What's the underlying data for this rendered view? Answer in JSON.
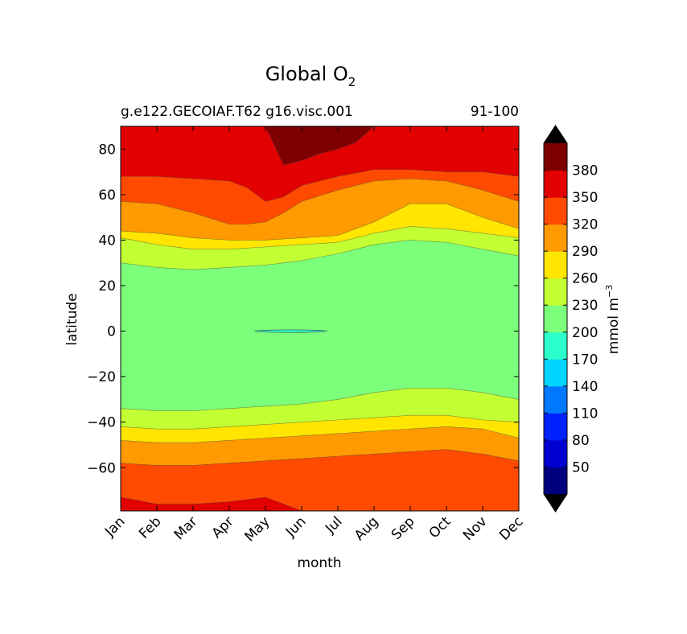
{
  "chart_data": {
    "type": "heatmap",
    "title": "Global O",
    "title_subscript": "2",
    "subtitle_left": "g.e122.GECOIAF.T62 g16.visc.001",
    "subtitle_right": "91-100",
    "xlabel": "month",
    "ylabel": "latitude",
    "x_ticks": [
      "Jan",
      "Feb",
      "Mar",
      "Apr",
      "May",
      "Jun",
      "Jul",
      "Aug",
      "Sep",
      "Oct",
      "Nov",
      "Dec"
    ],
    "y_ticks": [
      80,
      60,
      40,
      20,
      0,
      -20,
      -40,
      -60
    ],
    "ylim": [
      -79,
      90
    ],
    "colorbar": {
      "label": "mmol m",
      "label_superscript": "−3",
      "levels": [
        20,
        50,
        80,
        110,
        140,
        170,
        200,
        230,
        260,
        290,
        320,
        350,
        380,
        410
      ],
      "tick_labels": [
        "50",
        "80",
        "110",
        "140",
        "170",
        "200",
        "230",
        "260",
        "290",
        "320",
        "350",
        "380"
      ],
      "colors": [
        "#00007f",
        "#0000d0",
        "#0022ff",
        "#0078ff",
        "#00d4ff",
        "#2bffcc",
        "#7cff7a",
        "#c2ff33",
        "#ffe500",
        "#ff9a00",
        "#ff4a00",
        "#e20000",
        "#7f0000"
      ],
      "extend": "both",
      "under_color": "#000000",
      "over_color": "#000000"
    },
    "contour_boundaries": [
      {
        "value": 380,
        "side": "north",
        "months": [
          5.0,
          5.5,
          6.0,
          6.5,
          7.0,
          7.5,
          8.0
        ],
        "lat": [
          90,
          73,
          75,
          78,
          80,
          83,
          90
        ]
      },
      {
        "value": 350,
        "side": "north",
        "months": [
          1,
          2,
          3,
          4,
          4.5,
          5,
          5.5,
          6,
          7,
          8,
          9,
          10,
          11,
          12
        ],
        "lat": [
          68,
          68,
          67,
          66,
          63,
          57,
          59,
          64,
          68,
          71,
          71,
          70,
          70,
          68
        ]
      },
      {
        "value": 320,
        "side": "north",
        "months": [
          1,
          2,
          3,
          4,
          4.5,
          5,
          5.5,
          6,
          7,
          8,
          9,
          10,
          11,
          12
        ],
        "lat": [
          57,
          56,
          52,
          47,
          47,
          48,
          52,
          57,
          62,
          66,
          67,
          66,
          62,
          57
        ]
      },
      {
        "value": 290,
        "side": "north",
        "months": [
          1,
          2,
          3,
          4,
          5,
          6,
          7,
          8,
          9,
          10,
          11,
          12
        ],
        "lat": [
          44,
          43,
          41,
          40,
          40,
          41,
          42,
          48,
          56,
          56,
          50,
          45
        ]
      },
      {
        "value": 260,
        "side": "north",
        "months": [
          1,
          2,
          3,
          4,
          5,
          6,
          7,
          8,
          9,
          10,
          11,
          12
        ],
        "lat": [
          41,
          38,
          36,
          36,
          37,
          38,
          39,
          43,
          46,
          45,
          43,
          41
        ]
      },
      {
        "value": 230,
        "side": "north",
        "months": [
          1,
          2,
          3,
          4,
          5,
          6,
          7,
          8,
          9,
          10,
          11,
          12
        ],
        "lat": [
          30,
          28,
          27,
          28,
          29,
          31,
          34,
          38,
          40,
          39,
          36,
          33
        ]
      },
      {
        "value": 230,
        "side": "south",
        "months": [
          1,
          2,
          3,
          4,
          5,
          6,
          7,
          8,
          9,
          10,
          11,
          12
        ],
        "lat": [
          -34,
          -35,
          -35,
          -34,
          -33,
          -32,
          -30,
          -27,
          -25,
          -25,
          -27,
          -30
        ]
      },
      {
        "value": 260,
        "side": "south",
        "months": [
          1,
          2,
          3,
          4,
          5,
          6,
          7,
          8,
          9,
          10,
          11,
          12
        ],
        "lat": [
          -42,
          -43,
          -43,
          -42,
          -41,
          -40,
          -39,
          -38,
          -37,
          -37,
          -39,
          -40
        ]
      },
      {
        "value": 290,
        "side": "south",
        "months": [
          1,
          2,
          3,
          4,
          5,
          6,
          7,
          8,
          9,
          10,
          11,
          12
        ],
        "lat": [
          -48,
          -49,
          -49,
          -48,
          -47,
          -46,
          -45,
          -44,
          -43,
          -42,
          -43,
          -47
        ]
      },
      {
        "value": 320,
        "side": "south",
        "months": [
          1,
          2,
          3,
          4,
          5,
          6,
          7,
          8,
          9,
          10,
          11,
          12
        ],
        "lat": [
          -58,
          -59,
          -59,
          -58,
          -57,
          -56,
          -55,
          -54,
          -53,
          -52,
          -54,
          -57
        ]
      },
      {
        "value": 350,
        "side": "south",
        "months": [
          1,
          2,
          3,
          4,
          5,
          5.5,
          6,
          7,
          8,
          9,
          10,
          11,
          12
        ],
        "lat": [
          -73,
          -76,
          -76,
          -75,
          -73,
          -76,
          -79,
          -79,
          -79,
          -79,
          -79,
          -79,
          -79
        ]
      }
    ]
  }
}
